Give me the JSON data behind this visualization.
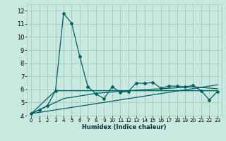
{
  "xlabel": "Humidex (Indice chaleur)",
  "bg_color": "#c8e8e0",
  "grid_color": "#a0c8c0",
  "line_color": "#006060",
  "xlim": [
    -0.5,
    23.5
  ],
  "ylim": [
    4,
    12.5
  ],
  "yticks": [
    4,
    5,
    6,
    7,
    8,
    9,
    10,
    11,
    12
  ],
  "xticks": [
    0,
    1,
    2,
    3,
    4,
    5,
    6,
    7,
    8,
    9,
    10,
    11,
    12,
    13,
    14,
    15,
    16,
    17,
    18,
    19,
    20,
    21,
    22,
    23
  ],
  "series1_x": [
    0,
    1,
    2,
    3,
    4,
    5,
    6,
    7,
    8,
    9,
    10,
    11,
    12,
    13,
    14,
    15,
    16,
    17,
    18,
    19,
    20,
    21,
    22,
    23
  ],
  "series1_y": [
    4.15,
    4.45,
    4.75,
    5.9,
    11.8,
    11.05,
    8.5,
    6.2,
    5.65,
    5.3,
    6.2,
    5.8,
    5.85,
    6.5,
    6.45,
    6.55,
    6.1,
    6.25,
    6.25,
    6.2,
    6.3,
    5.9,
    5.2,
    5.85
  ],
  "series2_x": [
    0,
    3,
    5,
    23
  ],
  "series2_y": [
    4.15,
    5.9,
    5.9,
    5.9
  ],
  "series3_x": [
    0,
    23
  ],
  "series3_y": [
    4.15,
    6.35
  ],
  "series4_x": [
    0,
    4,
    8,
    12,
    16,
    20,
    23
  ],
  "series4_y": [
    4.15,
    5.3,
    5.7,
    5.9,
    6.05,
    6.2,
    6.05
  ]
}
